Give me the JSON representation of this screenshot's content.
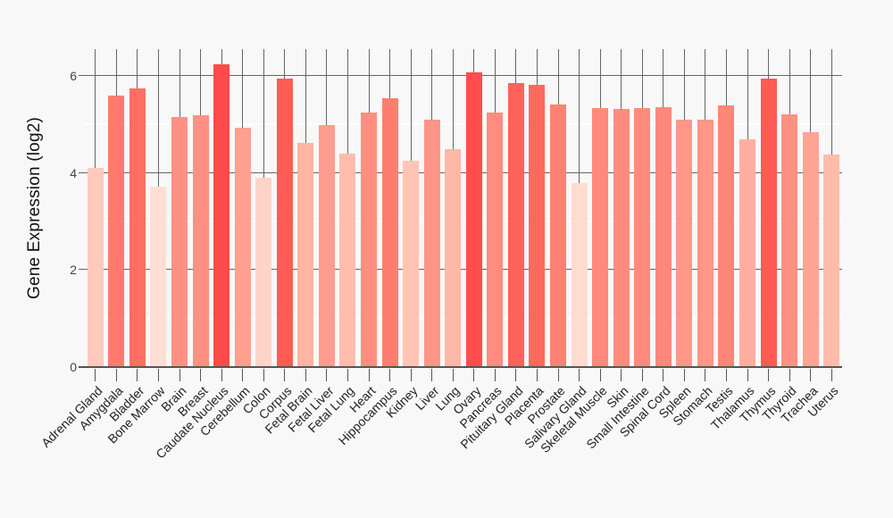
{
  "chart_data": {
    "type": "bar",
    "ylabel": "Gene Expression (log2)",
    "categories": [
      "Adrenal Gland",
      "Amygdala",
      "Bladder",
      "Bone Marrow",
      "Brain",
      "Breast",
      "Caudate Nucleus",
      "Cerebellum",
      "Colon",
      "Corpus",
      "Fetal Brain",
      "Fetal Liver",
      "Fetal Lung",
      "Heart",
      "Hippocampus",
      "Kidney",
      "Liver",
      "Lung",
      "Ovary",
      "Pancreas",
      "Pituitary Gland",
      "Placenta",
      "Prostate",
      "Salivary Gland",
      "Skeletal Muscle",
      "Skin",
      "Small Intestine",
      "Spinal Cord",
      "Spleen",
      "Stomach",
      "Testis",
      "Thalamus",
      "Thymus",
      "Thyroid",
      "Trachea",
      "Uterus"
    ],
    "values": [
      4.11,
      5.6,
      5.74,
      3.72,
      5.15,
      5.19,
      6.24,
      4.94,
      3.9,
      5.94,
      4.61,
      4.99,
      4.4,
      5.25,
      5.54,
      4.25,
      5.1,
      4.49,
      6.08,
      5.25,
      5.86,
      5.81,
      5.41,
      3.79,
      5.33,
      5.31,
      5.33,
      5.35,
      5.1,
      5.1,
      5.39,
      4.7,
      5.95,
      5.2,
      4.83,
      4.38
    ],
    "bar_colors": [
      "#ffc9bc",
      "#ff7a6d",
      "#ff6e62",
      "#ffdfd4",
      "#ff9183",
      "#ff9082",
      "#fd4a4b",
      "#ff9f90",
      "#ffd4c8",
      "#ff5c55",
      "#ffb4a4",
      "#ff9c8d",
      "#ffbcac",
      "#ff8d80",
      "#ff7d70",
      "#ffc4b4",
      "#ff9587",
      "#ffb7a7",
      "#ff4d4d",
      "#ff8c7e",
      "#ff625b",
      "#ff685f",
      "#ff8175",
      "#ffdbd0",
      "#ff8a7c",
      "#ff8b7d",
      "#ff8a7c",
      "#ff887a",
      "#ff9788",
      "#ff9687",
      "#ff8578",
      "#ffaf9f",
      "#ff5a53",
      "#ff9183",
      "#ffa392",
      "#ffbcab"
    ],
    "ylim": [
      0,
      6.55
    ],
    "yticks_major": [
      0,
      2,
      4,
      6
    ],
    "yticks_minor": [
      1,
      3,
      5
    ],
    "grid": "on",
    "legend": "none",
    "colors": {
      "background": "#f8f8f8",
      "grid_major": "#666666",
      "grid_minor": "#ffffff",
      "axis_line": "#555555",
      "tick_text": "#444444",
      "category_text": "#222222",
      "ylabel_text": "#111111"
    }
  }
}
